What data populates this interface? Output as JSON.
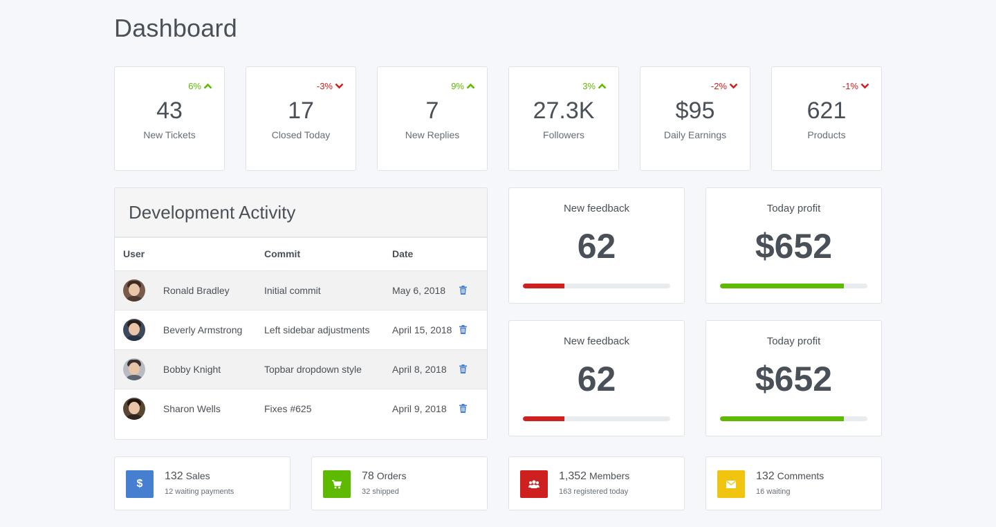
{
  "page": {
    "title": "Dashboard"
  },
  "stats": [
    {
      "change": "6%",
      "direction": "up",
      "value": "43",
      "label": "New Tickets"
    },
    {
      "change": "-3%",
      "direction": "down",
      "value": "17",
      "label": "Closed Today"
    },
    {
      "change": "9%",
      "direction": "up",
      "value": "7",
      "label": "New Replies"
    },
    {
      "change": "3%",
      "direction": "up",
      "value": "27.3K",
      "label": "Followers"
    },
    {
      "change": "-2%",
      "direction": "down",
      "value": "$95",
      "label": "Daily Earnings"
    },
    {
      "change": "-1%",
      "direction": "down",
      "value": "621",
      "label": "Products"
    }
  ],
  "dev_activity": {
    "title": "Development Activity",
    "columns": {
      "user": "User",
      "commit": "Commit",
      "date": "Date"
    },
    "rows": [
      {
        "user": "Ronald Bradley",
        "commit": "Initial commit",
        "date": "May 6, 2018"
      },
      {
        "user": "Beverly Armstrong",
        "commit": "Left sidebar adjustments",
        "date": "April 15, 2018"
      },
      {
        "user": "Bobby Knight",
        "commit": "Topbar dropdown style",
        "date": "April 8, 2018"
      },
      {
        "user": "Sharon Wells",
        "commit": "Fixes #625",
        "date": "April 9, 2018"
      }
    ]
  },
  "metrics": [
    {
      "label": "New feedback",
      "value": "62",
      "progress": 0.28,
      "color": "#cd201f"
    },
    {
      "label": "Today profit",
      "value": "$652",
      "progress": 0.84,
      "color": "#5eba00"
    },
    {
      "label": "New feedback",
      "value": "62",
      "progress": 0.28,
      "color": "#cd201f"
    },
    {
      "label": "Today profit",
      "value": "$652",
      "progress": 0.84,
      "color": "#5eba00"
    }
  ],
  "summary": [
    {
      "icon": "dollar-icon",
      "color": "#467fcf",
      "number": "132",
      "label": "Sales",
      "sub": "12 waiting payments"
    },
    {
      "icon": "cart-icon",
      "color": "#5eba00",
      "number": "78",
      "label": "Orders",
      "sub": "32 shipped"
    },
    {
      "icon": "users-icon",
      "color": "#cd201f",
      "number": "1,352",
      "label": "Members",
      "sub": "163 registered today"
    },
    {
      "icon": "envelope-icon",
      "color": "#f1c40f",
      "number": "132",
      "label": "Comments",
      "sub": "16 waiting"
    }
  ],
  "colors": {
    "accent_blue": "#467fcf",
    "up": "#5eba00",
    "down": "#cd201f"
  }
}
